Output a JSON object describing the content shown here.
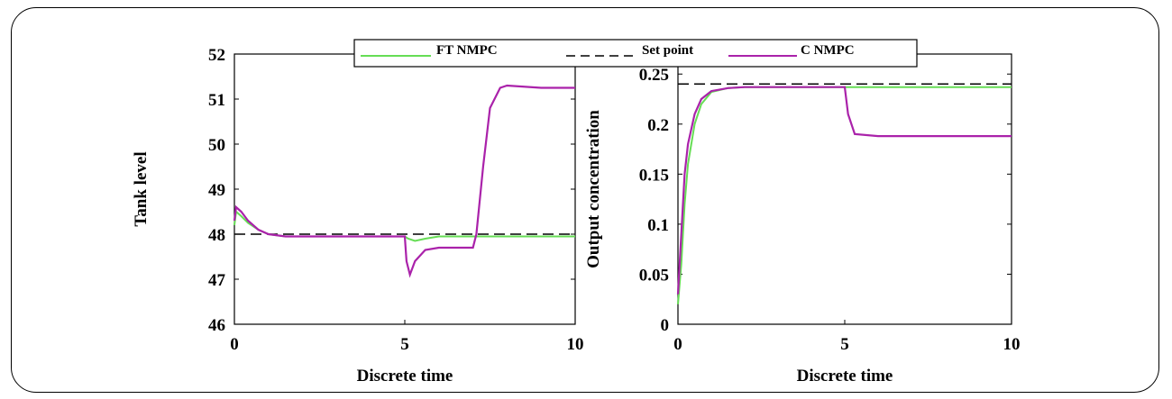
{
  "colors": {
    "ft_nmpc": "#66dd55",
    "set_point": "#000000",
    "c_nmpc": "#aa22aa"
  },
  "legend": [
    {
      "label": "FT NMPC",
      "style": "solid",
      "color": "#66dd55"
    },
    {
      "label": "Set point",
      "style": "dashed",
      "color": "#000000"
    },
    {
      "label": "C NMPC",
      "style": "solid",
      "color": "#aa22aa"
    }
  ],
  "chart_data": [
    {
      "type": "line",
      "xlabel": "Discrete time",
      "ylabel": "Tank level",
      "xlim": [
        0,
        10
      ],
      "ylim": [
        46,
        52
      ],
      "xticks": [
        "0",
        "5",
        "10"
      ],
      "yticks": [
        "46",
        "47",
        "48",
        "49",
        "50",
        "51",
        "52"
      ],
      "grid": false,
      "legend_position": "top-center",
      "series": [
        {
          "name": "Set point",
          "x": [
            0,
            10
          ],
          "y": [
            48,
            48
          ]
        },
        {
          "name": "FT NMPC",
          "x": [
            0,
            0.05,
            0.2,
            0.4,
            0.7,
            1.0,
            1.5,
            2,
            3,
            4,
            5,
            5.1,
            5.3,
            5.6,
            6,
            7,
            8,
            9,
            10
          ],
          "y": [
            48.2,
            48.5,
            48.4,
            48.25,
            48.1,
            48.0,
            47.95,
            47.95,
            47.95,
            47.95,
            47.95,
            47.9,
            47.85,
            47.9,
            47.95,
            47.95,
            47.95,
            47.95,
            47.95
          ]
        },
        {
          "name": "C NMPC",
          "x": [
            0,
            0.05,
            0.2,
            0.4,
            0.7,
            1.0,
            1.5,
            2,
            3,
            4,
            5,
            5.05,
            5.15,
            5.3,
            5.6,
            6,
            6.5,
            7,
            7.1,
            7.3,
            7.5,
            7.8,
            8,
            9,
            10
          ],
          "y": [
            48.3,
            48.6,
            48.5,
            48.3,
            48.1,
            48.0,
            47.95,
            47.95,
            47.95,
            47.95,
            47.95,
            47.4,
            47.1,
            47.4,
            47.65,
            47.7,
            47.7,
            47.7,
            48.0,
            49.5,
            50.8,
            51.25,
            51.3,
            51.25,
            51.25
          ]
        }
      ]
    },
    {
      "type": "line",
      "xlabel": "Discrete time",
      "ylabel": "Output concentration",
      "xlim": [
        0,
        10
      ],
      "ylim": [
        0,
        0.27
      ],
      "xticks": [
        "0",
        "5",
        "10"
      ],
      "yticks": [
        "0",
        "0.05",
        "0.1",
        "0.15",
        "0.2",
        "0.25"
      ],
      "grid": false,
      "series": [
        {
          "name": "Set point",
          "x": [
            0,
            10
          ],
          "y": [
            0.24,
            0.24
          ]
        },
        {
          "name": "FT NMPC",
          "x": [
            0,
            0.1,
            0.2,
            0.3,
            0.5,
            0.7,
            1.0,
            1.5,
            2,
            3,
            5,
            10
          ],
          "y": [
            0.02,
            0.06,
            0.12,
            0.16,
            0.2,
            0.22,
            0.232,
            0.236,
            0.237,
            0.237,
            0.237,
            0.237
          ]
        },
        {
          "name": "C NMPC",
          "x": [
            0,
            0.1,
            0.2,
            0.3,
            0.5,
            0.7,
            1.0,
            1.5,
            2,
            3,
            4,
            5,
            5.1,
            5.3,
            6,
            7,
            8,
            9,
            10
          ],
          "y": [
            0.03,
            0.09,
            0.15,
            0.18,
            0.21,
            0.225,
            0.233,
            0.236,
            0.237,
            0.237,
            0.237,
            0.237,
            0.21,
            0.19,
            0.188,
            0.188,
            0.188,
            0.188,
            0.188
          ]
        }
      ]
    }
  ]
}
